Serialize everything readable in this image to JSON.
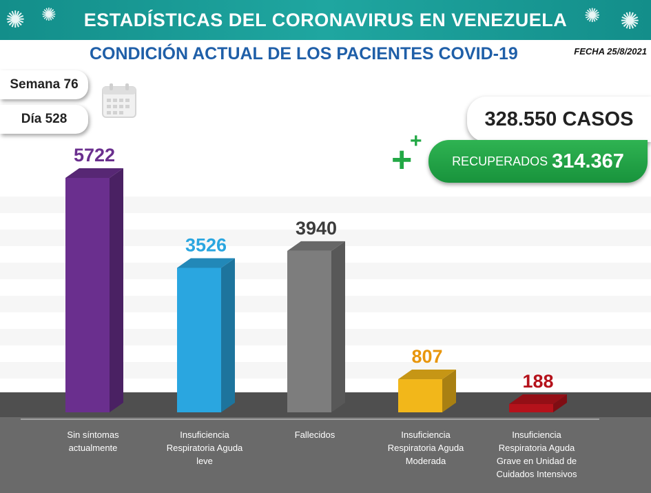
{
  "header": {
    "banner_title": "ESTADÍSTICAS DEL CORONAVIRUS EN VENEZUELA",
    "subtitle": "CONDICIÓN ACTUAL DE LOS PACIENTES COVID-19",
    "date_label": "FECHA 25/8/2021"
  },
  "info": {
    "week_label": "Semana 76",
    "day_label": "Día 528",
    "cases_label": "328.550 CASOS",
    "recovered_label": "RECUPERADOS",
    "recovered_value": "314.367"
  },
  "colors": {
    "banner": "#1a9e99",
    "subtitle": "#1f5fa8",
    "recovered": "#22a845",
    "floor": "#595959"
  },
  "chart_data": {
    "type": "bar",
    "categories": [
      "Sin síntomas actualmente",
      "Insuficiencia Respiratoria Aguda leve",
      "Fallecidos",
      "Insuficiencia Respiratoria Aguda Moderada",
      "Insuficiencia Respiratoria Aguda Grave en Unidad de Cuidados Intensivos"
    ],
    "category_lines": [
      [
        "Sin síntomas",
        "actualmente"
      ],
      [
        "Insuficiencia",
        "Respiratoria Aguda",
        "leve"
      ],
      [
        "Fallecidos"
      ],
      [
        "Insuficiencia",
        "Respiratoria Aguda",
        "Moderada"
      ],
      [
        "Insuficiencia",
        "Respiratoria Aguda",
        "Grave en Unidad de",
        "Cuidados Intensivos"
      ]
    ],
    "values": [
      5722,
      3526,
      3940,
      807,
      188
    ],
    "value_labels": [
      "5722",
      "3526",
      "3940",
      "807",
      "188"
    ],
    "colors": [
      "#6a2f8e",
      "#2aa6e0",
      "#7d7d7d",
      "#f2b71a",
      "#b5121b"
    ],
    "label_colors": [
      "#6a2f8e",
      "#2aa6e0",
      "#3c3c3c",
      "#e8960c",
      "#b5121b"
    ],
    "title": "CONDICIÓN ACTUAL DE LOS PACIENTES COVID-19",
    "xlabel": "",
    "ylabel": "",
    "grid": false,
    "legend": "none"
  }
}
